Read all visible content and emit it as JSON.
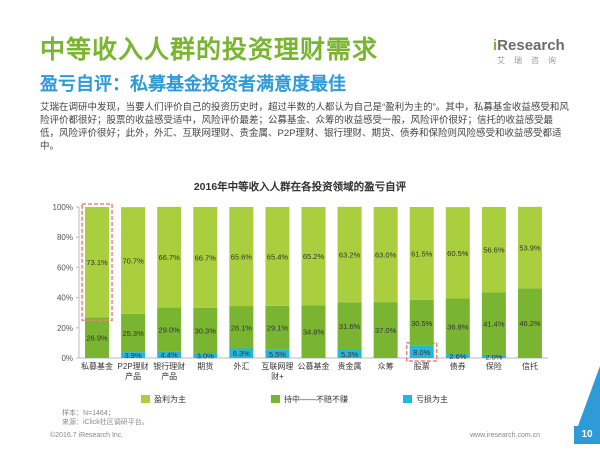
{
  "header": {
    "title": "中等收入人群的投资理财需求",
    "subtitle": "盈亏自评：私募基金投资者满意度最佳",
    "intro": "艾瑞在调研中发现，当要人们评价自己的投资历史时，超过半数的人都认为自己是“盈利为主的”。其中，私募基金收益感受和风险评价都很好；股票的收益感受适中，风险评价最差；公募基金、众筹的收益感受一般，风险评价很好；信托的收益感受最低，风险评价很好；此外，外汇、互联网理财、贵金属、P2P理财、银行理财、期货、债券和保险则风险感受和收益感受都适中。"
  },
  "logo": {
    "main_prefix": "i",
    "main_rest": "Research",
    "sub": "艾瑞咨询"
  },
  "colors": {
    "profit": "#a9cf3e",
    "neutral": "#79b530",
    "loss": "#26b6d8",
    "highlight": "#e8857a"
  },
  "chart_data": {
    "type": "bar",
    "stacked": true,
    "title": "2016年中等收入人群在各投资领域的盈亏自评",
    "categories": [
      "私募基金",
      "P2P理财产品",
      "银行理财产品",
      "期货",
      "外汇",
      "互联网理财+",
      "公募基金",
      "贵金属",
      "众筹",
      "股票",
      "债券",
      "保险",
      "信托"
    ],
    "category_lines": [
      [
        "私募基金"
      ],
      [
        "P2P理财",
        "产品"
      ],
      [
        "银行理财",
        "产品"
      ],
      [
        "期货"
      ],
      [
        "外汇"
      ],
      [
        "互联网理",
        "财+"
      ],
      [
        "公募基金"
      ],
      [
        "贵金属"
      ],
      [
        "众筹"
      ],
      [
        "股票"
      ],
      [
        "债券"
      ],
      [
        "保险"
      ],
      [
        "信托"
      ]
    ],
    "series": [
      {
        "name": "亏损为主",
        "color": "#26b6d8",
        "values": [
          0.0,
          3.9,
          4.4,
          3.0,
          6.3,
          5.5,
          0.0,
          5.3,
          0.0,
          8.0,
          2.6,
          2.0,
          0.0
        ]
      },
      {
        "name": "持中——不赔不赚",
        "color": "#79b530",
        "values": [
          26.9,
          25.3,
          29.0,
          30.3,
          28.1,
          29.1,
          34.8,
          31.6,
          37.0,
          30.5,
          36.8,
          41.4,
          46.2
        ]
      },
      {
        "name": "盈利为主",
        "color": "#a9cf3e",
        "values": [
          73.1,
          70.7,
          66.7,
          66.7,
          65.6,
          65.4,
          65.2,
          63.2,
          63.0,
          61.5,
          60.5,
          56.6,
          53.9
        ]
      }
    ],
    "legend": [
      "盈利为主",
      "持中——不赔不赚",
      "亏损为主"
    ],
    "y_ticks": [
      "0%",
      "20%",
      "40%",
      "60%",
      "80%",
      "100%"
    ],
    "ylim": [
      0,
      100
    ],
    "highlights": [
      {
        "category": "私募基金",
        "series": "盈利为主"
      },
      {
        "category": "股票",
        "series": "亏损为主"
      }
    ]
  },
  "notes": {
    "sample": "样本：N=1464；",
    "source": "来源：iClick社区调研平台。"
  },
  "footer": {
    "copyright": "©2016.7 iResearch Inc.",
    "url": "www.iresearch.com.cn",
    "page": "10"
  }
}
